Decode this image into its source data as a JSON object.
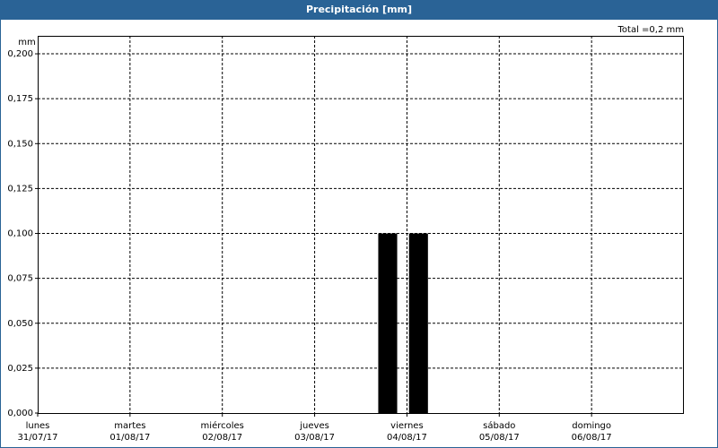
{
  "chart_data": {
    "type": "bar",
    "title": "Precipitación [mm]",
    "y_unit": "mm",
    "annotation": "Total =0,2 mm",
    "x": [
      "2017-08-03 19:00",
      "2017-08-04 03:00"
    ],
    "values": [
      0.1,
      0.1
    ],
    "color": "#000000",
    "xlim": [
      "2017-07-31 00:00",
      "2017-08-07 00:00"
    ],
    "xticks": [
      {
        "value": "2017-07-31 00:00",
        "label": "lunes\n31/07/17"
      },
      {
        "value": "2017-08-01 00:00",
        "label": "martes\n01/08/17"
      },
      {
        "value": "2017-08-02 00:00",
        "label": "miércoles\n02/08/17"
      },
      {
        "value": "2017-08-03 00:00",
        "label": "jueves\n03/08/17"
      },
      {
        "value": "2017-08-04 00:00",
        "label": "viernes\n04/08/17"
      },
      {
        "value": "2017-08-05 00:00",
        "label": "sábado\n05/08/17"
      },
      {
        "value": "2017-08-06 00:00",
        "label": "domingo\n06/08/17"
      }
    ],
    "ylim": [
      0,
      0.21
    ],
    "yticks": [
      {
        "value": 0,
        "label": "0,000"
      },
      {
        "value": 0.025,
        "label": "0,025"
      },
      {
        "value": 0.05,
        "label": "0,050"
      },
      {
        "value": 0.075,
        "label": "0,075"
      },
      {
        "value": 0.1,
        "label": "0,100"
      },
      {
        "value": 0.125,
        "label": "0,125"
      },
      {
        "value": 0.15,
        "label": "0,150"
      },
      {
        "value": 0.175,
        "label": "0,175"
      },
      {
        "value": 0.2,
        "label": "0,200"
      }
    ],
    "grid": true
  }
}
